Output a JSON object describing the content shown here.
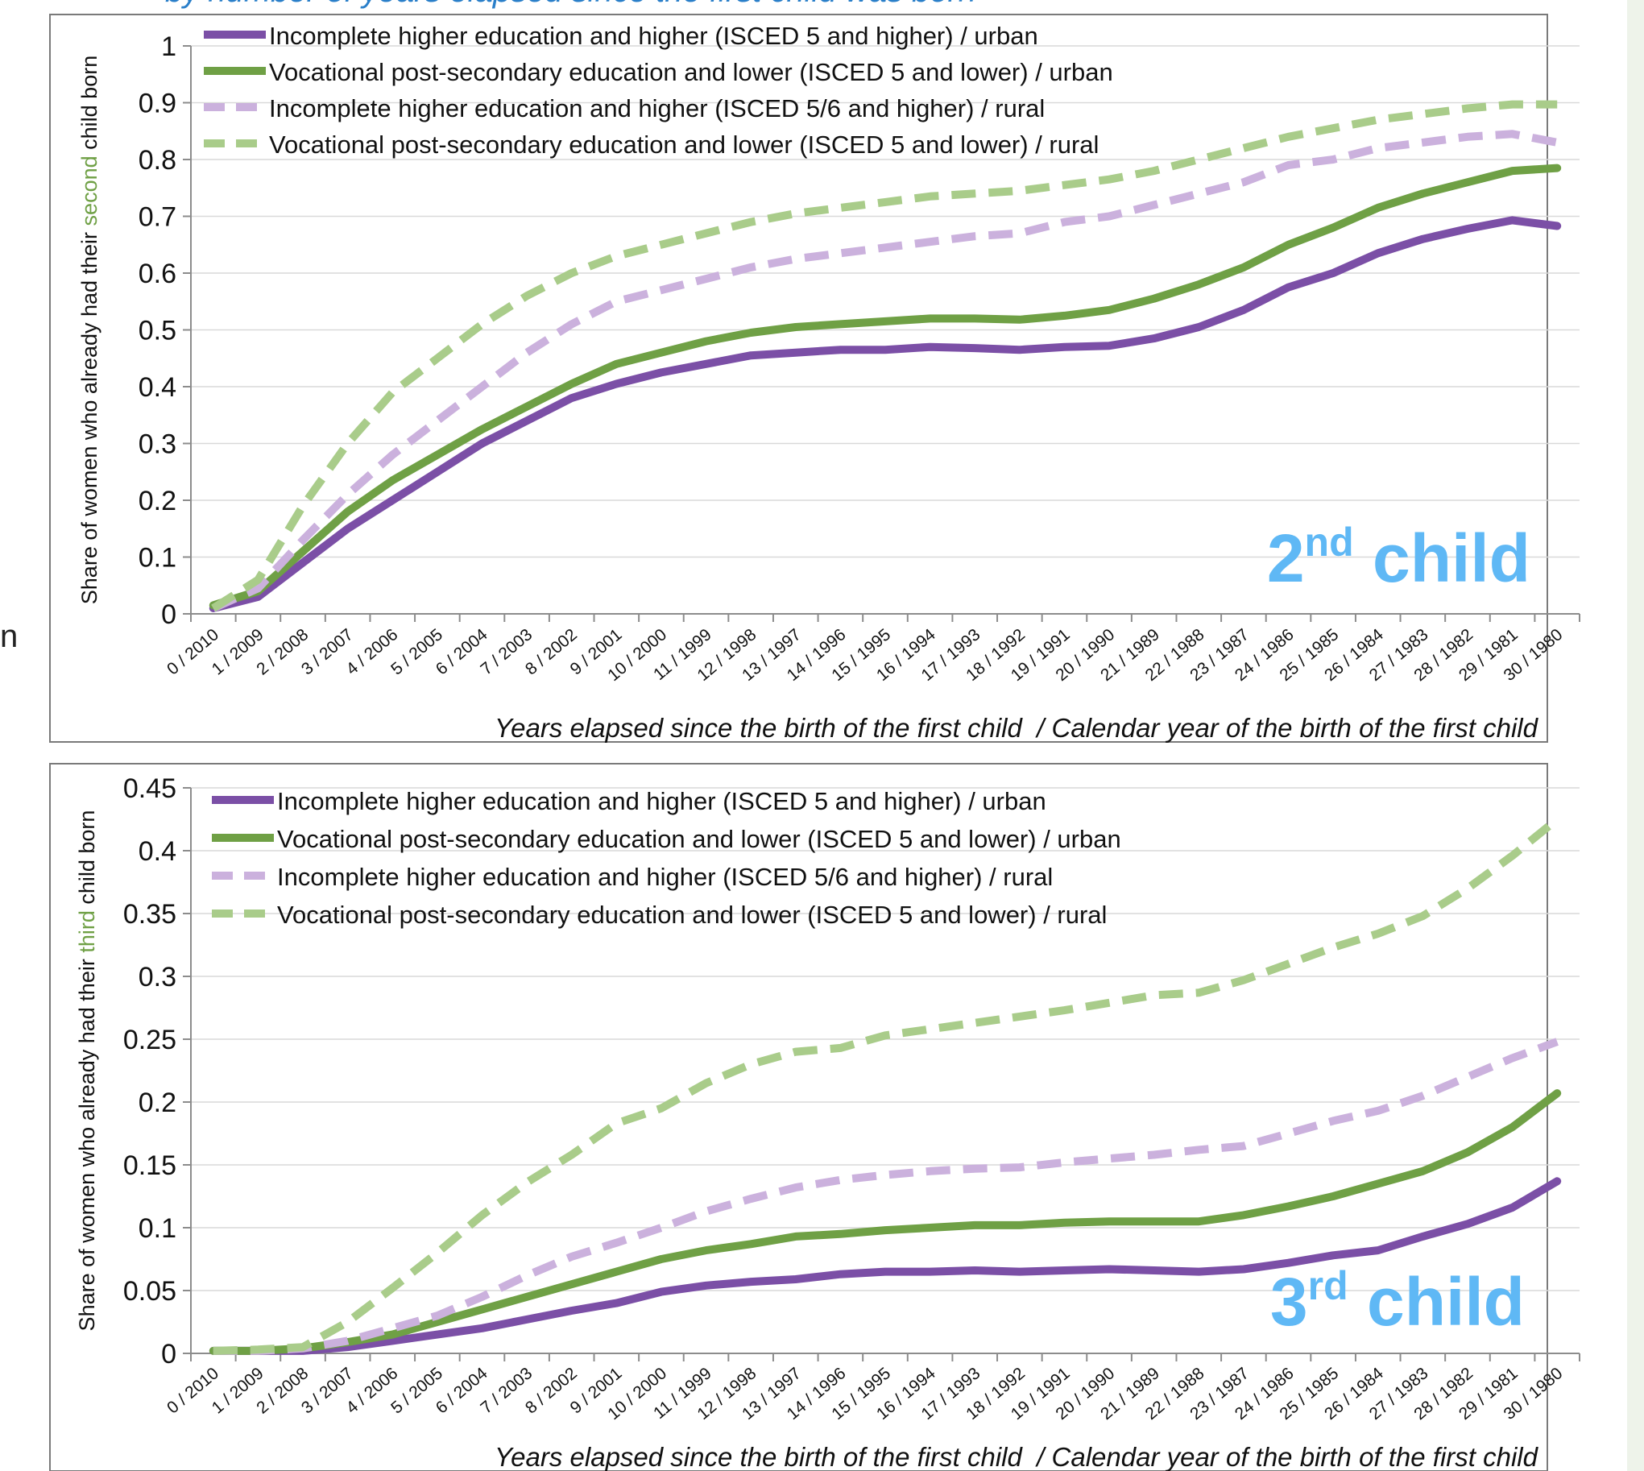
{
  "header": {
    "subtitle_fragment": "by number of years elapsed since the first child was born",
    "left_fragment": "n"
  },
  "colors": {
    "urban_higher": "#7b4fa6",
    "urban_vocational": "#6fa045",
    "rural_higher": "#cbb1dd",
    "rural_vocational": "#a9cc8a",
    "child_label": "#5fb8f5",
    "highlight_word": "#6fa045",
    "subtitle": "#2a7fc9",
    "sidebar": "#eef3ea"
  },
  "categories": [
    "0 / 2010",
    "1 / 2009",
    "2 / 2008",
    "3 / 2007",
    "4 / 2006",
    "5 / 2005",
    "6 / 2004",
    "7 / 2003",
    "8 / 2002",
    "9 / 2001",
    "10 / 2000",
    "11 / 1999",
    "12 / 1998",
    "13 / 1997",
    "14 / 1996",
    "15 / 1995",
    "16 / 1994",
    "17 / 1993",
    "18 / 1992",
    "19 / 1991",
    "20 / 1990",
    "21 / 1989",
    "22 / 1988",
    "23 / 1987",
    "24 / 1986",
    "25 / 1985",
    "26 / 1984",
    "27 / 1983",
    "28 / 1982",
    "29 / 1981",
    "30 / 1980"
  ],
  "chart_data": [
    {
      "type": "line",
      "child_label_main": "2",
      "child_label_sup": "nd",
      "child_label_rest": " child",
      "ylabel_pre": "Share of women who already had their ",
      "ylabel_highlight": "second",
      "ylabel_post": " child born",
      "xlabel": "Years elapsed since the birth of the first child  / Calendar year of the birth of the first child",
      "ylim": [
        0,
        1
      ],
      "yticks": [
        "0",
        "0.1",
        "0.2",
        "0.3",
        "0.4",
        "0.5",
        "0.6",
        "0.7",
        "0.8",
        "0.9",
        "1"
      ],
      "grid": true,
      "legend_position": "top-left",
      "series": [
        {
          "name": "Incomplete higher education and higher (ISCED 5 and higher) / urban",
          "style": "solid",
          "color_key": "urban_higher",
          "values": [
            0.01,
            0.03,
            0.09,
            0.15,
            0.2,
            0.25,
            0.3,
            0.34,
            0.38,
            0.405,
            0.425,
            0.44,
            0.455,
            0.46,
            0.465,
            0.465,
            0.47,
            0.468,
            0.465,
            0.47,
            0.472,
            0.485,
            0.505,
            0.535,
            0.575,
            0.6,
            0.635,
            0.66,
            0.678,
            0.693,
            0.683
          ]
        },
        {
          "name": "Vocational post-secondary education and lower (ISCED 5 and lower) / urban",
          "style": "solid",
          "color_key": "urban_vocational",
          "values": [
            0.015,
            0.04,
            0.11,
            0.18,
            0.235,
            0.28,
            0.325,
            0.365,
            0.405,
            0.44,
            0.46,
            0.48,
            0.495,
            0.505,
            0.51,
            0.515,
            0.52,
            0.52,
            0.518,
            0.525,
            0.535,
            0.555,
            0.58,
            0.61,
            0.65,
            0.68,
            0.715,
            0.74,
            0.76,
            0.78,
            0.785
          ]
        },
        {
          "name": "Incomplete higher education and higher (ISCED 5/6 and higher) / rural",
          "style": "dashed",
          "color_key": "rural_higher",
          "values": [
            0.01,
            0.045,
            0.13,
            0.21,
            0.28,
            0.34,
            0.4,
            0.46,
            0.51,
            0.55,
            0.57,
            0.59,
            0.61,
            0.625,
            0.635,
            0.645,
            0.655,
            0.665,
            0.67,
            0.69,
            0.7,
            0.72,
            0.74,
            0.76,
            0.79,
            0.8,
            0.82,
            0.83,
            0.84,
            0.845,
            0.83
          ]
        },
        {
          "name": "Vocational post-secondary education and lower (ISCED 5 and lower) / rural",
          "style": "dashed",
          "color_key": "rural_vocational",
          "values": [
            0.01,
            0.06,
            0.19,
            0.3,
            0.39,
            0.45,
            0.51,
            0.56,
            0.6,
            0.63,
            0.65,
            0.67,
            0.69,
            0.705,
            0.715,
            0.725,
            0.735,
            0.74,
            0.745,
            0.755,
            0.765,
            0.78,
            0.8,
            0.82,
            0.84,
            0.855,
            0.87,
            0.88,
            0.89,
            0.897,
            0.897
          ]
        }
      ]
    },
    {
      "type": "line",
      "child_label_main": "3",
      "child_label_sup": "rd",
      "child_label_rest": " child",
      "ylabel_pre": "Share of women who already had their ",
      "ylabel_highlight": "third",
      "ylabel_post": " child born",
      "xlabel": "Years elapsed since the birth of the first child  / Calendar year of the birth of the first child",
      "ylim": [
        0,
        0.45
      ],
      "yticks": [
        "0",
        "0.05",
        "0.1",
        "0.15",
        "0.2",
        "0.25",
        "0.3",
        "0.35",
        "0.4",
        "0.45"
      ],
      "grid": true,
      "legend_position": "top-left",
      "series": [
        {
          "name": "Incomplete higher education and higher (ISCED 5 and higher) / urban",
          "style": "solid",
          "color_key": "urban_higher",
          "values": [
            0.002,
            0.002,
            0.002,
            0.005,
            0.01,
            0.015,
            0.02,
            0.027,
            0.034,
            0.04,
            0.049,
            0.054,
            0.057,
            0.059,
            0.063,
            0.065,
            0.065,
            0.066,
            0.065,
            0.066,
            0.067,
            0.066,
            0.065,
            0.067,
            0.072,
            0.078,
            0.082,
            0.093,
            0.103,
            0.116,
            0.137
          ]
        },
        {
          "name": "Vocational post-secondary education and lower (ISCED 5 and lower) / urban",
          "style": "solid",
          "color_key": "urban_vocational",
          "values": [
            0.002,
            0.002,
            0.004,
            0.009,
            0.015,
            0.025,
            0.035,
            0.045,
            0.055,
            0.065,
            0.075,
            0.082,
            0.087,
            0.093,
            0.095,
            0.098,
            0.1,
            0.102,
            0.102,
            0.104,
            0.105,
            0.105,
            0.105,
            0.11,
            0.117,
            0.125,
            0.135,
            0.145,
            0.16,
            0.18,
            0.207
          ]
        },
        {
          "name": "Incomplete higher education and higher (ISCED 5/6 and higher) / rural",
          "style": "dashed",
          "color_key": "rural_higher",
          "values": [
            0.002,
            0.002,
            0.004,
            0.01,
            0.02,
            0.03,
            0.045,
            0.062,
            0.077,
            0.088,
            0.1,
            0.113,
            0.123,
            0.132,
            0.138,
            0.142,
            0.145,
            0.147,
            0.148,
            0.152,
            0.155,
            0.158,
            0.162,
            0.165,
            0.175,
            0.185,
            0.193,
            0.205,
            0.22,
            0.235,
            0.248
          ]
        },
        {
          "name": "Vocational post-secondary education and lower (ISCED 5 and lower) / rural",
          "style": "dashed",
          "color_key": "rural_vocational",
          "values": [
            0.002,
            0.003,
            0.005,
            0.025,
            0.052,
            0.08,
            0.11,
            0.136,
            0.158,
            0.183,
            0.195,
            0.215,
            0.23,
            0.24,
            0.243,
            0.253,
            0.258,
            0.263,
            0.268,
            0.273,
            0.279,
            0.285,
            0.287,
            0.297,
            0.31,
            0.323,
            0.334,
            0.348,
            0.37,
            0.396,
            0.425
          ]
        }
      ]
    }
  ]
}
